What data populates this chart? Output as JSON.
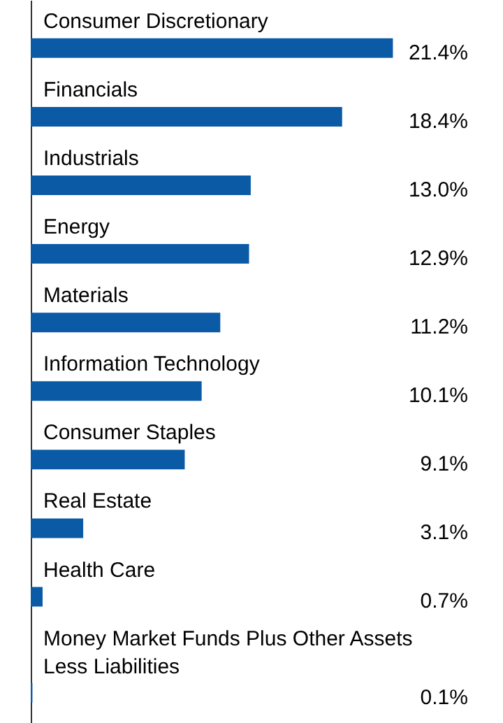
{
  "chart_data": {
    "type": "bar",
    "orientation": "horizontal",
    "color": "#0b5aa6",
    "categories": [
      "Consumer Discretionary",
      "Financials",
      "Industrials",
      "Energy",
      "Materials",
      "Information Technology",
      "Consumer Staples",
      "Real Estate",
      "Health Care",
      "Money Market Funds Plus Other Assets Less Liabilities"
    ],
    "values": [
      21.4,
      18.4,
      13.0,
      12.9,
      11.2,
      10.1,
      9.1,
      3.1,
      0.7,
      0.1
    ],
    "value_labels": [
      "21.4%",
      "18.4%",
      "13.0%",
      "12.9%",
      "11.2%",
      "10.1%",
      "9.1%",
      "3.1%",
      "0.7%",
      "0.1%"
    ]
  }
}
